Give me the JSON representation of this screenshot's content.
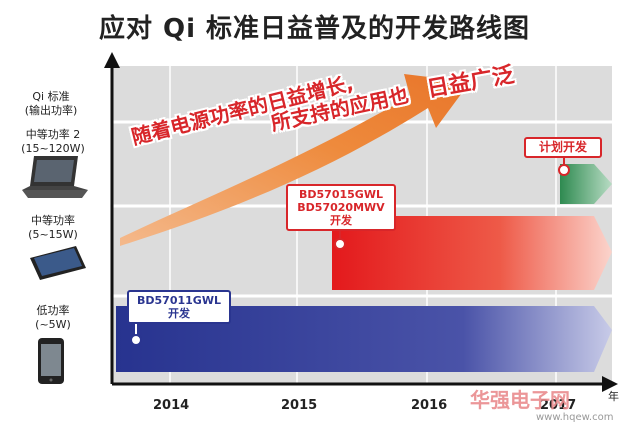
{
  "title": "应对 Qi 标准日益普及的开发路线图",
  "y_axis_header": [
    "Qi 标准",
    "(输出功率)"
  ],
  "rows": [
    {
      "name": "中等功率 2",
      "range": "(15~120W)",
      "device": "laptop-icon"
    },
    {
      "name": "中等功率",
      "range": "(5~15W)",
      "device": "tablet-icon"
    },
    {
      "name": "低功率",
      "range": "(~5W)",
      "device": "phone-icon"
    }
  ],
  "years": [
    "2014",
    "2015",
    "2016",
    "2017"
  ],
  "x_unit": "年",
  "callouts": {
    "low": [
      "BD57011GWL",
      "开发"
    ],
    "mid": [
      "BD57015GWL",
      "BD57020MWV",
      "开发"
    ],
    "high": [
      "计划开发"
    ]
  },
  "slogan": {
    "line1": "随着电源功率的日益增长,",
    "line2": "所支持的应用也",
    "line3": "日益广泛"
  },
  "watermark": {
    "text": "华强电子网",
    "url": "www.hqew.com"
  },
  "colors": {
    "blue": "#2a3590",
    "red": "#d8262a",
    "green": "#2f8a52",
    "orange": "#ee8a3c"
  }
}
